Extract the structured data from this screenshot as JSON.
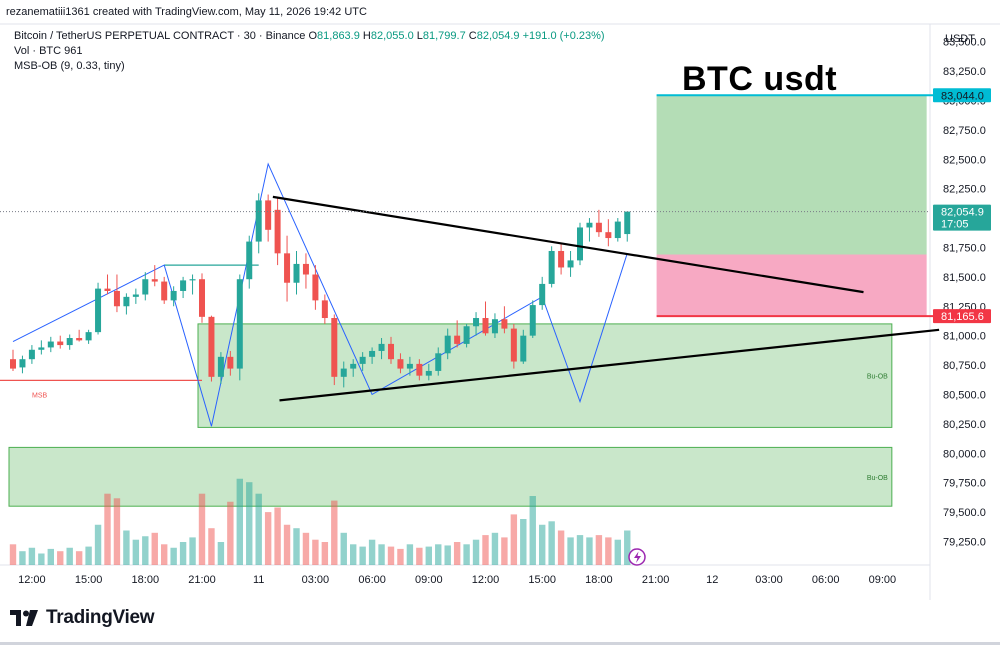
{
  "header": {
    "credit": "rezanematiii1361 created with TradingView.com, May 11, 2026 19:42 UTC",
    "symbol": "Bitcoin / TetherUS PERPETUAL CONTRACT · 30 · Binance",
    "ohlc": {
      "o_label": "O",
      "o": "81,863.9",
      "h_label": "H",
      "h": "82,055.0",
      "l_label": "L",
      "l": "81,799.7",
      "c_label": "C",
      "c": "82,054.9",
      "change": "+191.0 (+0.23%)"
    },
    "volume_label": "Vol · BTC",
    "volume_value": "961",
    "indicator": "MSB-OB (9, 0.33, tiny)"
  },
  "title_annotation": "BTC usdt",
  "footer": {
    "brand": "TradingView"
  },
  "colors": {
    "up": "#26a69a",
    "down": "#ef5350",
    "zone_green": "#4caf50",
    "zone_red": "#f06292",
    "target_line": "#00bcd4",
    "stop_line": "#f23645",
    "trend_line": "#000000",
    "zigzag": "#2962ff"
  },
  "chart_data": {
    "type": "candlestick",
    "currency_label": "USDT",
    "ylim": [
      79050,
      83650
    ],
    "y_ticks": [
      "83,500.0",
      "83,250.0",
      "83,000.0",
      "82,750.0",
      "82,500.0",
      "82,250.0",
      "82,000.0",
      "81,750.0",
      "81,500.0",
      "81,250.0",
      "81,000.0",
      "80,750.0",
      "80,500.0",
      "80,250.0",
      "80,000.0",
      "79,750.0",
      "79,500.0",
      "79,250.0"
    ],
    "y_tick_values": [
      83500,
      83250,
      83000,
      82750,
      82500,
      82250,
      82000,
      81750,
      81500,
      81250,
      81000,
      80750,
      80500,
      80250,
      80000,
      79750,
      79500,
      79250
    ],
    "x_ticks": [
      "12:00",
      "15:00",
      "18:00",
      "21:00",
      "11",
      "03:00",
      "06:00",
      "09:00",
      "12:00",
      "15:00",
      "18:00",
      "21:00",
      "12",
      "03:00",
      "06:00",
      "09:00"
    ],
    "x_tick_index": [
      2,
      8,
      14,
      20,
      26,
      32,
      38,
      44,
      50,
      56,
      62,
      68,
      74,
      80,
      86,
      92
    ],
    "price_labels": {
      "target": "83,044.0",
      "current": "82,054.9",
      "countdown": "17:05",
      "stop": "81,165.6"
    },
    "price_values": {
      "target": 83044,
      "current": 82054.9,
      "stop": 81165.6
    },
    "zone_labels": {
      "bu_ob": "Bu-OB",
      "msb": "MSB"
    },
    "candles": [
      [
        80800,
        80880,
        80700,
        80720
      ],
      [
        80730,
        80830,
        80680,
        80800
      ],
      [
        80800,
        80920,
        80760,
        80880
      ],
      [
        80880,
        80960,
        80840,
        80900
      ],
      [
        80900,
        80990,
        80860,
        80950
      ],
      [
        80950,
        81000,
        80890,
        80920
      ],
      [
        80920,
        81010,
        80880,
        80980
      ],
      [
        80980,
        81050,
        80950,
        80960
      ],
      [
        80960,
        81050,
        80930,
        81030
      ],
      [
        81030,
        81450,
        81010,
        81400
      ],
      [
        81400,
        81520,
        81350,
        81380
      ],
      [
        81380,
        81520,
        81200,
        81250
      ],
      [
        81250,
        81360,
        81180,
        81330
      ],
      [
        81330,
        81400,
        81270,
        81350
      ],
      [
        81350,
        81540,
        81300,
        81480
      ],
      [
        81480,
        81600,
        81420,
        81460
      ],
      [
        81460,
        81500,
        81270,
        81300
      ],
      [
        81300,
        81420,
        81250,
        81380
      ],
      [
        81380,
        81500,
        81320,
        81470
      ],
      [
        81470,
        81520,
        81350,
        81480
      ],
      [
        81480,
        81530,
        81110,
        81160
      ],
      [
        81160,
        81170,
        80610,
        80650
      ],
      [
        80650,
        80860,
        80590,
        80820
      ],
      [
        80820,
        80870,
        80660,
        80720
      ],
      [
        80720,
        81520,
        80620,
        81480
      ],
      [
        81480,
        81850,
        81400,
        81800
      ],
      [
        81800,
        82210,
        81700,
        82150
      ],
      [
        82150,
        82200,
        81800,
        81900
      ],
      [
        82070,
        82180,
        81600,
        81700
      ],
      [
        81700,
        81850,
        81290,
        81450
      ],
      [
        81450,
        81720,
        81350,
        81610
      ],
      [
        81610,
        81700,
        81400,
        81520
      ],
      [
        81520,
        81600,
        81220,
        81300
      ],
      [
        81300,
        81350,
        81100,
        81150
      ],
      [
        81150,
        81180,
        80580,
        80650
      ],
      [
        80650,
        80780,
        80560,
        80720
      ],
      [
        80720,
        80800,
        80650,
        80760
      ],
      [
        80760,
        80860,
        80700,
        80820
      ],
      [
        80820,
        80900,
        80760,
        80870
      ],
      [
        80870,
        80980,
        80800,
        80930
      ],
      [
        80930,
        80990,
        80760,
        80800
      ],
      [
        80800,
        80850,
        80680,
        80720
      ],
      [
        80720,
        80820,
        80660,
        80760
      ],
      [
        80760,
        80800,
        80620,
        80660
      ],
      [
        80660,
        80760,
        80620,
        80700
      ],
      [
        80700,
        80900,
        80660,
        80850
      ],
      [
        80850,
        81060,
        80800,
        81000
      ],
      [
        81000,
        81130,
        80900,
        80930
      ],
      [
        80930,
        81100,
        80900,
        81080
      ],
      [
        81080,
        81200,
        81000,
        81150
      ],
      [
        81150,
        81290,
        81000,
        81020
      ],
      [
        81020,
        81190,
        80980,
        81140
      ],
      [
        81140,
        81250,
        81020,
        81060
      ],
      [
        81060,
        81100,
        80720,
        80780
      ],
      [
        80780,
        81050,
        80760,
        81000
      ],
      [
        81000,
        81300,
        80980,
        81260
      ],
      [
        81260,
        81500,
        81220,
        81440
      ],
      [
        81440,
        81760,
        81410,
        81720
      ],
      [
        81720,
        81780,
        81520,
        81580
      ],
      [
        81580,
        81720,
        81500,
        81640
      ],
      [
        81640,
        81960,
        81600,
        81920
      ],
      [
        81920,
        82000,
        81800,
        81960
      ],
      [
        81960,
        82070,
        81840,
        81880
      ],
      [
        81880,
        81990,
        81760,
        81830
      ],
      [
        81830,
        82000,
        81800,
        81970
      ],
      [
        81863.9,
        82055,
        81799.7,
        82054.9
      ]
    ],
    "volumes": [
      0.18,
      0.12,
      0.15,
      0.1,
      0.14,
      0.12,
      0.15,
      0.12,
      0.16,
      0.35,
      0.62,
      0.58,
      0.3,
      0.22,
      0.25,
      0.28,
      0.18,
      0.15,
      0.2,
      0.24,
      0.62,
      0.32,
      0.2,
      0.55,
      0.75,
      0.72,
      0.62,
      0.46,
      0.5,
      0.35,
      0.32,
      0.28,
      0.22,
      0.2,
      0.56,
      0.28,
      0.18,
      0.16,
      0.22,
      0.18,
      0.16,
      0.14,
      0.18,
      0.15,
      0.16,
      0.18,
      0.17,
      0.2,
      0.18,
      0.22,
      0.26,
      0.28,
      0.24,
      0.44,
      0.4,
      0.6,
      0.35,
      0.38,
      0.3,
      0.24,
      0.26,
      0.24,
      0.26,
      0.24,
      0.22,
      0.3
    ],
    "bu_ob_zones": [
      {
        "from_index": 20,
        "to_index": 93,
        "top": 81100,
        "bottom": 80220
      },
      {
        "from_index": 0,
        "to_index": 93,
        "top": 80050,
        "bottom": 79550
      }
    ],
    "msb_line": {
      "from_index": 0,
      "to_index": 20,
      "y": 80620
    },
    "msb_break_line": {
      "from_index": 16,
      "to_index": 26,
      "y": 81600
    },
    "zigzag": [
      [
        0,
        80950
      ],
      [
        16,
        81600
      ],
      [
        21,
        80230
      ],
      [
        27,
        82460
      ],
      [
        38,
        80500
      ],
      [
        56,
        81330
      ],
      [
        60,
        80440
      ],
      [
        65,
        81700
      ]
    ],
    "trend_lines": [
      {
        "from": [
          27.5,
          82180
        ],
        "to": [
          90,
          81370
        ]
      },
      {
        "from": [
          28.2,
          80450
        ],
        "to": [
          98,
          81050
        ]
      }
    ],
    "position": {
      "from_index": 68,
      "to_index": 97,
      "entry": 81690,
      "target": 83044,
      "stop": 81165.6
    }
  }
}
